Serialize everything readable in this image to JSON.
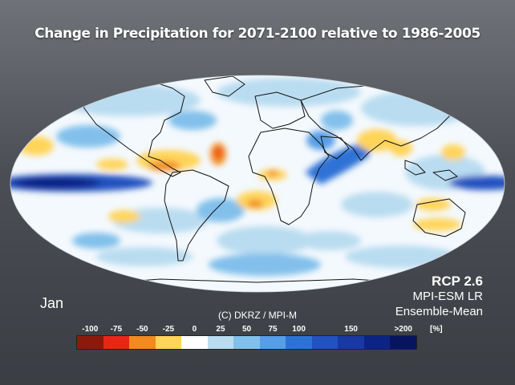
{
  "title": "Change in Precipitation for 2071-2100 relative to 1986-2005",
  "month": "Jan",
  "scenario": "RCP 2.6",
  "model": "MPI-ESM LR",
  "ensemble": "Ensemble-Mean",
  "credit": "(C) DKRZ / MPI-M",
  "unit": "[%]",
  "colorbar": {
    "ticks": [
      "-100",
      "-75",
      "-50",
      "-25",
      "0",
      "25",
      "50",
      "75",
      "100",
      "150",
      ">200"
    ],
    "tick_positions": [
      0,
      1,
      2,
      3,
      4,
      5,
      6,
      7,
      8,
      10,
      12
    ],
    "colors": [
      "#8c1a0c",
      "#e82618",
      "#f28a20",
      "#ffd45a",
      "#ffffff",
      "#b9dcf0",
      "#82c0eb",
      "#569ee6",
      "#2e72d6",
      "#2251c0",
      "#1839a4",
      "#0c2484",
      "#06155e"
    ]
  },
  "map": {
    "ocean_color": "#f4f9fd",
    "coast_color": "#111111"
  }
}
